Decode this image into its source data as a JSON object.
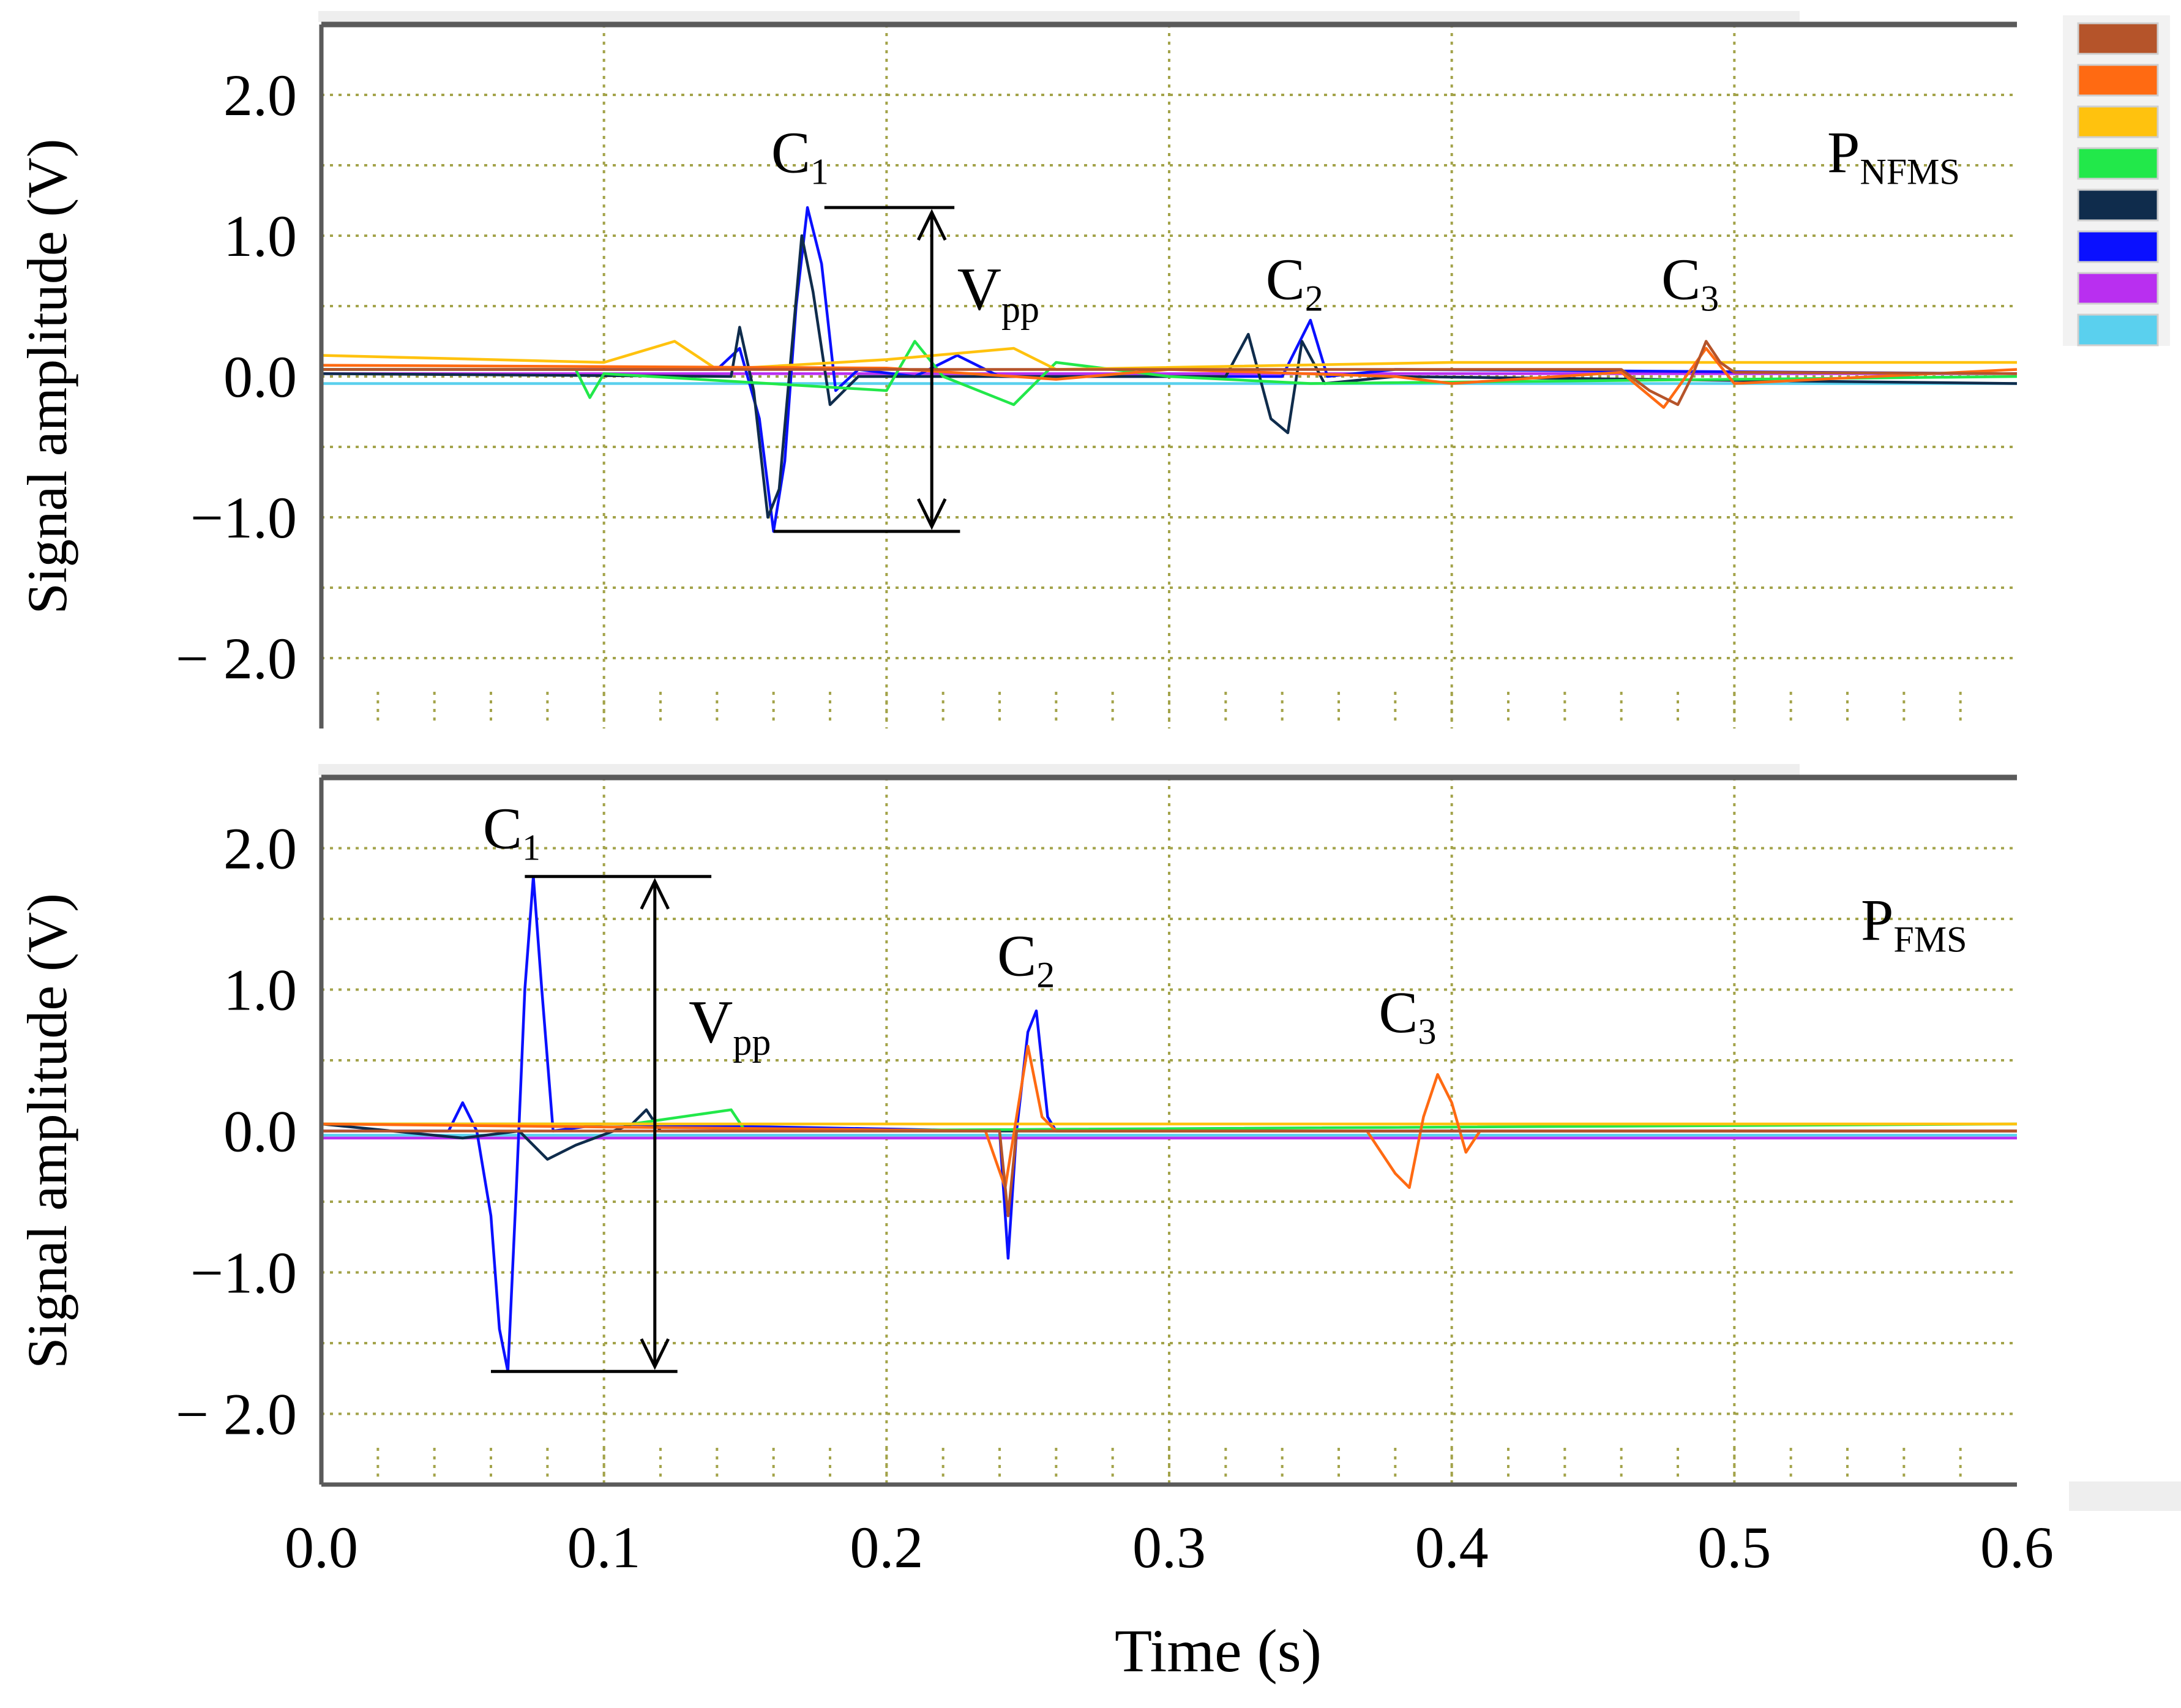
{
  "colors": {
    "frame": "#5a5a5a",
    "grid": "#a3a34a",
    "text": "#000000",
    "legend_swatches": [
      "#b5542a",
      "#ff6a12",
      "#ffc20e",
      "#22e84a",
      "#0f2c4c",
      "#0a10ff",
      "#b92ff0",
      "#5ad0ee"
    ]
  },
  "x_axis": {
    "label": "Time (s)",
    "ticks": [
      "0.0",
      "0.1",
      "0.2",
      "0.3",
      "0.4",
      "0.5",
      "0.6"
    ]
  },
  "chart_data": [
    {
      "type": "line",
      "id": "top",
      "panel_label_main": "P",
      "panel_label_sub": "NFMS",
      "ylabel": "Signal amplitude (V)",
      "xlim": [
        0.0,
        0.6
      ],
      "ylim": [
        -2.5,
        2.5
      ],
      "yticks": [
        "2.0",
        "1.0",
        "0.0",
        "−1.0",
        "− 2.0"
      ],
      "grid": true,
      "legend": "right-of-plot, swatches only",
      "annotations": [
        {
          "main": "C",
          "sub": "1",
          "x": 0.17,
          "y": 1.45
        },
        {
          "main": "C",
          "sub": "2",
          "x": 0.345,
          "y": 0.55
        },
        {
          "main": "C",
          "sub": "3",
          "x": 0.485,
          "y": 0.55
        }
      ],
      "vpp": {
        "main": "V",
        "sub": "pp",
        "x": 0.225,
        "y": 0.65,
        "arrow_x": 0.216,
        "top": 1.2,
        "bottom": -1.1,
        "top_bar": [
          0.178,
          0.224
        ],
        "bottom_bar": [
          0.16,
          0.226
        ]
      },
      "series": [
        {
          "color": "#b5542a",
          "values": [
            [
              0.0,
              0.05
            ],
            [
              0.46,
              0.05
            ],
            [
              0.47,
              -0.1
            ],
            [
              0.48,
              -0.2
            ],
            [
              0.485,
              0.0
            ],
            [
              0.49,
              0.25
            ],
            [
              0.495,
              0.1
            ],
            [
              0.5,
              0.03
            ],
            [
              0.6,
              0.02
            ]
          ]
        },
        {
          "color": "#ff6a12",
          "values": [
            [
              0.0,
              0.08
            ],
            [
              0.2,
              0.06
            ],
            [
              0.26,
              -0.02
            ],
            [
              0.3,
              0.05
            ],
            [
              0.38,
              0.0
            ],
            [
              0.4,
              -0.05
            ],
            [
              0.46,
              0.03
            ],
            [
              0.475,
              -0.22
            ],
            [
              0.49,
              0.2
            ],
            [
              0.5,
              -0.05
            ],
            [
              0.6,
              0.05
            ]
          ]
        },
        {
          "color": "#ffc20e",
          "values": [
            [
              0.0,
              0.15
            ],
            [
              0.1,
              0.1
            ],
            [
              0.125,
              0.25
            ],
            [
              0.14,
              0.05
            ],
            [
              0.2,
              0.12
            ],
            [
              0.245,
              0.2
            ],
            [
              0.26,
              0.05
            ],
            [
              0.4,
              0.1
            ],
            [
              0.6,
              0.1
            ]
          ]
        },
        {
          "color": "#22e84a",
          "values": [
            [
              0.0,
              0.05
            ],
            [
              0.09,
              0.05
            ],
            [
              0.095,
              -0.15
            ],
            [
              0.1,
              0.02
            ],
            [
              0.2,
              -0.1
            ],
            [
              0.21,
              0.25
            ],
            [
              0.22,
              0.0
            ],
            [
              0.245,
              -0.2
            ],
            [
              0.26,
              0.1
            ],
            [
              0.3,
              0.0
            ],
            [
              0.35,
              -0.05
            ],
            [
              0.6,
              0.0
            ]
          ]
        },
        {
          "color": "#0f2c4c",
          "values": [
            [
              0.0,
              0.02
            ],
            [
              0.145,
              0.0
            ],
            [
              0.148,
              0.35
            ],
            [
              0.153,
              -0.1
            ],
            [
              0.158,
              -1.0
            ],
            [
              0.162,
              -0.8
            ],
            [
              0.166,
              0.1
            ],
            [
              0.17,
              1.0
            ],
            [
              0.174,
              0.6
            ],
            [
              0.18,
              -0.2
            ],
            [
              0.19,
              0.0
            ],
            [
              0.32,
              0.0
            ],
            [
              0.328,
              0.3
            ],
            [
              0.336,
              -0.3
            ],
            [
              0.342,
              -0.4
            ],
            [
              0.347,
              0.25
            ],
            [
              0.355,
              -0.05
            ],
            [
              0.38,
              0.0
            ],
            [
              0.6,
              -0.05
            ]
          ]
        },
        {
          "color": "#0a10ff",
          "values": [
            [
              0.0,
              0.05
            ],
            [
              0.14,
              0.05
            ],
            [
              0.148,
              0.2
            ],
            [
              0.155,
              -0.3
            ],
            [
              0.16,
              -1.1
            ],
            [
              0.164,
              -0.6
            ],
            [
              0.168,
              0.5
            ],
            [
              0.172,
              1.2
            ],
            [
              0.177,
              0.8
            ],
            [
              0.182,
              -0.1
            ],
            [
              0.19,
              0.05
            ],
            [
              0.21,
              0.0
            ],
            [
              0.225,
              0.15
            ],
            [
              0.24,
              0.0
            ],
            [
              0.34,
              0.0
            ],
            [
              0.35,
              0.4
            ],
            [
              0.356,
              0.0
            ],
            [
              0.38,
              0.05
            ],
            [
              0.6,
              0.02
            ]
          ]
        },
        {
          "color": "#b92ff0",
          "values": [
            [
              0.0,
              0.02
            ],
            [
              0.6,
              0.02
            ]
          ]
        },
        {
          "color": "#5ad0ee",
          "values": [
            [
              0.0,
              -0.05
            ],
            [
              0.6,
              -0.05
            ]
          ]
        }
      ]
    },
    {
      "type": "line",
      "id": "bottom",
      "panel_label_main": "P",
      "panel_label_sub": "FMS",
      "ylabel": "Signal amplitude (V)",
      "xlim": [
        0.0,
        0.6
      ],
      "ylim": [
        -2.5,
        2.5
      ],
      "yticks": [
        "2.0",
        "1.0",
        "0.0",
        "−1.0",
        "− 2.0"
      ],
      "grid": true,
      "legend": "shared",
      "annotations": [
        {
          "main": "C",
          "sub": "1",
          "x": 0.068,
          "y": 2.0
        },
        {
          "main": "C",
          "sub": "2",
          "x": 0.25,
          "y": 1.1
        },
        {
          "main": "C",
          "sub": "3",
          "x": 0.385,
          "y": 0.7
        }
      ],
      "vpp": {
        "main": "V",
        "sub": "pp",
        "x": 0.13,
        "y": 0.8,
        "arrow_x": 0.118,
        "top": 1.8,
        "bottom": -1.7,
        "top_bar": [
          0.072,
          0.138
        ],
        "bottom_bar": [
          0.06,
          0.126
        ]
      },
      "series": [
        {
          "color": "#b5542a",
          "values": [
            [
              0.0,
              0.0
            ],
            [
              0.24,
              0.0
            ],
            [
              0.243,
              -0.6
            ],
            [
              0.246,
              0.0
            ],
            [
              0.6,
              0.0
            ]
          ]
        },
        {
          "color": "#ff6a12",
          "values": [
            [
              0.0,
              0.05
            ],
            [
              0.235,
              0.0
            ],
            [
              0.242,
              -0.4
            ],
            [
              0.246,
              0.1
            ],
            [
              0.25,
              0.6
            ],
            [
              0.255,
              0.1
            ],
            [
              0.26,
              0.0
            ],
            [
              0.37,
              0.0
            ],
            [
              0.38,
              -0.3
            ],
            [
              0.385,
              -0.4
            ],
            [
              0.39,
              0.1
            ],
            [
              0.395,
              0.4
            ],
            [
              0.4,
              0.2
            ],
            [
              0.405,
              -0.15
            ],
            [
              0.41,
              0.0
            ],
            [
              0.6,
              0.0
            ]
          ]
        },
        {
          "color": "#ffc20e",
          "values": [
            [
              0.0,
              0.05
            ],
            [
              0.6,
              0.05
            ]
          ]
        },
        {
          "color": "#22e84a",
          "values": [
            [
              0.0,
              0.05
            ],
            [
              0.11,
              0.05
            ],
            [
              0.145,
              0.15
            ],
            [
              0.15,
              0.0
            ],
            [
              0.6,
              0.05
            ]
          ]
        },
        {
          "color": "#0f2c4c",
          "values": [
            [
              0.0,
              0.05
            ],
            [
              0.05,
              -0.05
            ],
            [
              0.07,
              0.0
            ],
            [
              0.08,
              -0.2
            ],
            [
              0.09,
              -0.1
            ],
            [
              0.11,
              0.05
            ],
            [
              0.115,
              0.15
            ],
            [
              0.12,
              0.0
            ],
            [
              0.6,
              0.0
            ]
          ]
        },
        {
          "color": "#0a10ff",
          "values": [
            [
              0.0,
              0.0
            ],
            [
              0.045,
              0.0
            ],
            [
              0.05,
              0.2
            ],
            [
              0.055,
              0.0
            ],
            [
              0.06,
              -0.6
            ],
            [
              0.063,
              -1.4
            ],
            [
              0.066,
              -1.7
            ],
            [
              0.069,
              -0.4
            ],
            [
              0.072,
              1.0
            ],
            [
              0.075,
              1.8
            ],
            [
              0.078,
              1.0
            ],
            [
              0.082,
              0.0
            ],
            [
              0.1,
              0.05
            ],
            [
              0.24,
              0.0
            ],
            [
              0.243,
              -0.9
            ],
            [
              0.246,
              0.0
            ],
            [
              0.25,
              0.7
            ],
            [
              0.253,
              0.85
            ],
            [
              0.257,
              0.1
            ],
            [
              0.26,
              0.0
            ],
            [
              0.6,
              0.0
            ]
          ]
        },
        {
          "color": "#b92ff0",
          "values": [
            [
              0.0,
              -0.05
            ],
            [
              0.6,
              -0.05
            ]
          ]
        },
        {
          "color": "#5ad0ee",
          "values": [
            [
              0.0,
              -0.03
            ],
            [
              0.6,
              -0.03
            ]
          ]
        }
      ]
    }
  ]
}
